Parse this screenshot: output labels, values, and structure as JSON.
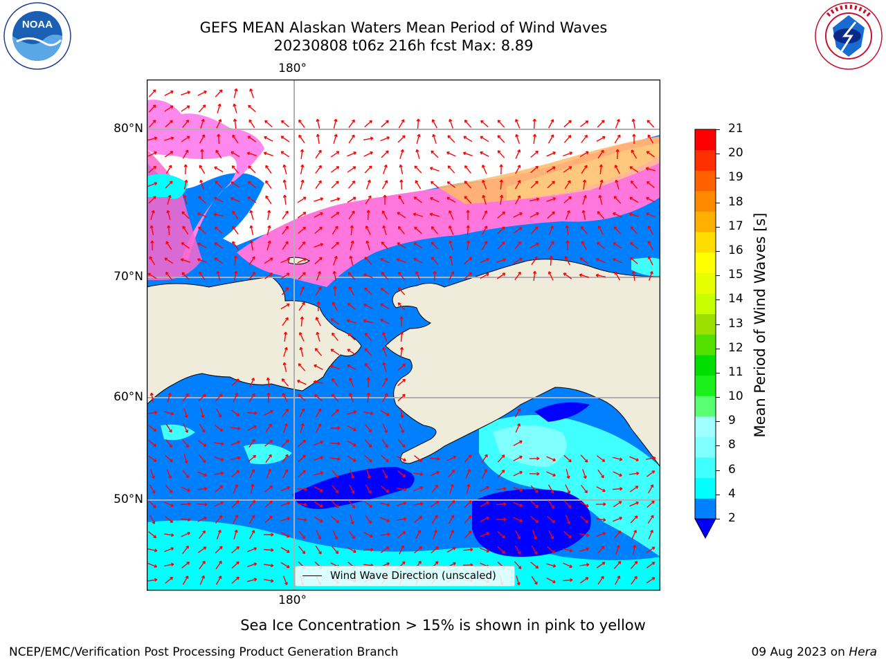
{
  "title": {
    "line1": "GEFS MEAN Alaskan Waters Mean Period of Wind Waves",
    "line2": "20230808 t06z 216h fcst   Max: 8.89"
  },
  "map": {
    "lon_label_top": "180°",
    "lon_label_bottom": "180°",
    "lat_labels": [
      "80°N",
      "70°N",
      "60°N",
      "50°N"
    ],
    "legend_label": "Wind Wave Direction (unscaled)",
    "arrow_color": "#ff0000",
    "land_color": "#efecdc",
    "sea_ice_colors": [
      "#ff66cc",
      "#ff88ee",
      "#ffa0a0",
      "#ffbb66",
      "#ffd27f",
      "#ffff99"
    ]
  },
  "colorbar": {
    "title": "Mean Period of Wind Waves [s]",
    "tick_labels": [
      "2",
      "4",
      "6",
      "8",
      "9",
      "10",
      "11",
      "12",
      "13",
      "14",
      "15",
      "16",
      "17",
      "18",
      "19",
      "20",
      "21"
    ],
    "colors": [
      "#0080ff",
      "#00ffff",
      "#40ffff",
      "#80ffff",
      "#a0ffff",
      "#59ff73",
      "#1cf01c",
      "#00dd00",
      "#55e100",
      "#9be000",
      "#c8ff00",
      "#e5ff00",
      "#ffff00",
      "#ffdd00",
      "#ffb000",
      "#ff8a00",
      "#ff6000",
      "#ff3000",
      "#ff0000"
    ],
    "under_color": "#0000ff"
  },
  "notes": {
    "ice": "Sea Ice Concentration > 15% is shown in pink to yellow"
  },
  "footer": {
    "left": "NCEP/EMC/Verification Post Processing Product Generation Branch",
    "date": "09 Aug 2023 on ",
    "machine": "Hera"
  },
  "logos": {
    "left": "NOAA",
    "left_ring": "NATIONAL OCEANIC AND ATMOSPHERIC ADMINISTRATION · U.S. DEPARTMENT OF COMMERCE",
    "right_ring": "NATIONAL WEATHER SERVICE"
  }
}
